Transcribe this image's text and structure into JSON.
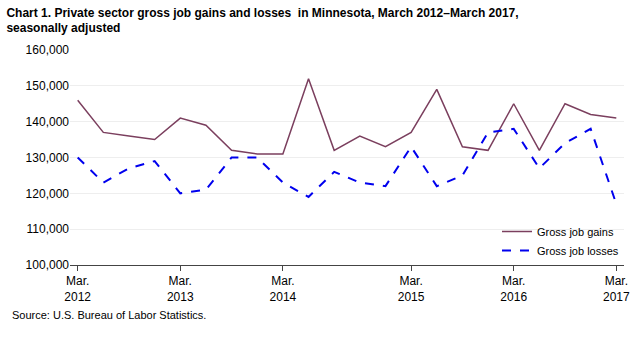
{
  "chart_data": {
    "type": "line",
    "title": "Chart 1. Private sector gross job gains and losses  in Minnesota, March 2012–March 2017,\nseasonally adjusted",
    "annotations": [
      "Source: U.S. Bureau of Labor Statistics."
    ],
    "categories": [
      "Mar.\n2012",
      null,
      null,
      null,
      "Mar.\n2013",
      null,
      null,
      null,
      "Mar.\n2014",
      null,
      null,
      null,
      null,
      "Mar.\n2015",
      null,
      null,
      null,
      "Mar.\n2016",
      null,
      null,
      null,
      "Mar.\n2017"
    ],
    "series": [
      {
        "name": "Gross job gains",
        "color": "#7B3F5E",
        "line_style": "solid",
        "values": [
          146000,
          137000,
          136000,
          135000,
          141000,
          139000,
          132000,
          131000,
          131000,
          152000,
          132000,
          136000,
          133000,
          137000,
          149000,
          133000,
          132000,
          145000,
          132000,
          145000,
          142000,
          141000
        ]
      },
      {
        "name": "Gross job losses",
        "color": "#0000EE",
        "line_style": "dashed",
        "values": [
          130000,
          123000,
          127000,
          129000,
          120000,
          121000,
          130000,
          130000,
          123000,
          119000,
          126000,
          123000,
          122000,
          133000,
          122000,
          125000,
          137000,
          138000,
          127000,
          134000,
          138000,
          117000
        ]
      }
    ],
    "ylim": [
      100000,
      160000
    ],
    "yticks": [
      {
        "value": 100000,
        "label": "100,000"
      },
      {
        "value": 110000,
        "label": "110,000"
      },
      {
        "value": 120000,
        "label": "120,000"
      },
      {
        "value": 130000,
        "label": "130,000"
      },
      {
        "value": 140000,
        "label": "140,000"
      },
      {
        "value": 150000,
        "label": "150,000"
      },
      {
        "value": 160000,
        "label": "160,000"
      }
    ],
    "grid": true,
    "legend": "lower right"
  }
}
